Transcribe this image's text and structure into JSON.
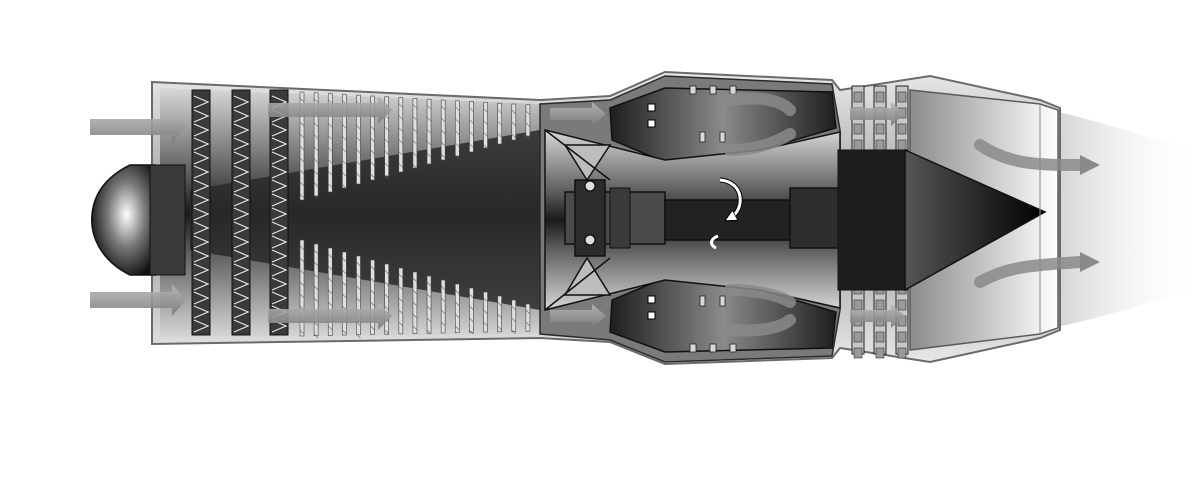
{
  "diagram": {
    "kind": "turbojet engine cutaway",
    "components": [
      "inlet-airflow-arrows",
      "nose-cone",
      "compressor-section",
      "combustion-chamber",
      "turbine-section",
      "exhaust-nozzle",
      "exhaust-airflow-arrows",
      "rotation-indicator"
    ],
    "colors": {
      "background": "#ffffff",
      "casing": "#8a8a8a",
      "outline": "#2a2a2a",
      "flow_arrow": "#9a9a9a",
      "dark_core": "#1a1a1a",
      "blade_light": "#e6e6e6"
    },
    "compressor_stage_count": 20,
    "turbine_stage_count": 3
  }
}
